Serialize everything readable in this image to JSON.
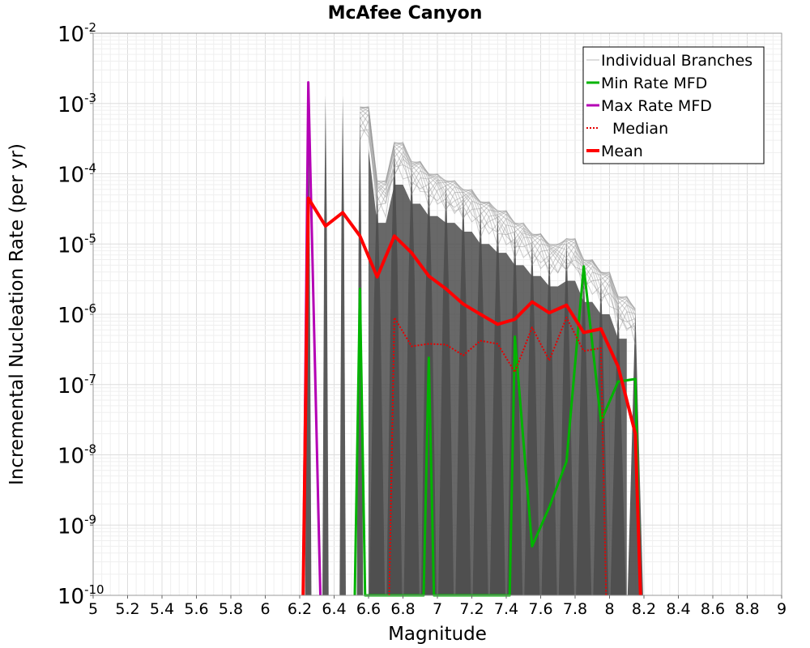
{
  "chart_data": {
    "type": "line",
    "title": "McAfee Canyon",
    "xlabel": "Magnitude",
    "ylabel": "Incremental Nucleation Rate (per yr)",
    "xlim": [
      5,
      9
    ],
    "ylim": [
      1e-10,
      0.01
    ],
    "yscale": "log",
    "grid": true,
    "legend_position": "top-right",
    "x_ticks": [
      "5",
      "5.2",
      "5.4",
      "5.6",
      "5.8",
      "6",
      "6.2",
      "6.4",
      "6.6",
      "6.8",
      "7",
      "7.2",
      "7.4",
      "7.6",
      "7.8",
      "8",
      "8.2",
      "8.4",
      "8.6",
      "8.8",
      "9"
    ],
    "y_ticks": [
      {
        "base": "10",
        "exp": "-10",
        "value": 1e-10
      },
      {
        "base": "10",
        "exp": "-9",
        "value": 1e-09
      },
      {
        "base": "10",
        "exp": "-8",
        "value": 1e-08
      },
      {
        "base": "10",
        "exp": "-7",
        "value": 1e-07
      },
      {
        "base": "10",
        "exp": "-6",
        "value": 1e-06
      },
      {
        "base": "10",
        "exp": "-5",
        "value": 1e-05
      },
      {
        "base": "10",
        "exp": "-4",
        "value": 0.0001
      },
      {
        "base": "10",
        "exp": "-3",
        "value": 0.001
      },
      {
        "base": "10",
        "exp": "-2",
        "value": 0.01
      }
    ],
    "envelope": {
      "name": "Individual Branches",
      "color": "#4d4d4d",
      "note_peaks": [
        {
          "x": 6.25,
          "y": 0.002
        },
        {
          "x": 6.35,
          "y": 0.0013
        },
        {
          "x": 6.45,
          "y": 0.0013
        },
        {
          "x": 6.55,
          "y": 0.0009
        },
        {
          "x": 6.65,
          "y": 8e-05
        },
        {
          "x": 6.75,
          "y": 0.00028
        },
        {
          "x": 6.85,
          "y": 0.00015
        },
        {
          "x": 6.95,
          "y": 0.0001
        },
        {
          "x": 7.05,
          "y": 8e-05
        },
        {
          "x": 7.15,
          "y": 6e-05
        },
        {
          "x": 7.25,
          "y": 4e-05
        },
        {
          "x": 7.35,
          "y": 3e-05
        },
        {
          "x": 7.45,
          "y": 2e-05
        },
        {
          "x": 7.55,
          "y": 1.4e-05
        },
        {
          "x": 7.65,
          "y": 1e-05
        },
        {
          "x": 7.75,
          "y": 1.2e-05
        },
        {
          "x": 7.85,
          "y": 6e-06
        },
        {
          "x": 7.95,
          "y": 4e-06
        },
        {
          "x": 8.05,
          "y": 1.8e-06
        },
        {
          "x": 8.15,
          "y": 1.2e-06
        }
      ]
    },
    "series": [
      {
        "name": "Min Rate MFD",
        "color": "#00b400",
        "style": "solid",
        "points": [
          [
            6.52,
            1e-10
          ],
          [
            6.55,
            2.3e-06
          ],
          [
            6.58,
            1e-10
          ],
          [
            6.92,
            1e-10
          ],
          [
            6.95,
            2.4e-07
          ],
          [
            6.98,
            1e-10
          ],
          [
            7.42,
            1e-10
          ],
          [
            7.45,
            4.8e-07
          ],
          [
            7.55,
            5e-10
          ],
          [
            7.65,
            1.8e-09
          ],
          [
            7.75,
            8e-09
          ],
          [
            7.85,
            4.8e-06
          ],
          [
            7.95,
            3e-08
          ],
          [
            8.05,
            1.1e-07
          ],
          [
            8.15,
            1.2e-07
          ],
          [
            8.18,
            1e-10
          ]
        ]
      },
      {
        "name": "Max Rate MFD",
        "color": "#b400b4",
        "style": "solid",
        "points": [
          [
            6.22,
            1e-10
          ],
          [
            6.25,
            0.002
          ],
          [
            6.32,
            1e-10
          ]
        ]
      },
      {
        "name": "Median",
        "color": "#e60000",
        "style": "dotted",
        "points": [
          [
            6.72,
            1e-10
          ],
          [
            6.75,
            9e-07
          ],
          [
            6.85,
            3.5e-07
          ],
          [
            6.95,
            3.8e-07
          ],
          [
            7.05,
            3.7e-07
          ],
          [
            7.15,
            2.6e-07
          ],
          [
            7.25,
            4.2e-07
          ],
          [
            7.35,
            3.8e-07
          ],
          [
            7.45,
            1.5e-07
          ],
          [
            7.55,
            6.5e-07
          ],
          [
            7.65,
            2.2e-07
          ],
          [
            7.75,
            9e-07
          ],
          [
            7.85,
            3e-07
          ],
          [
            7.95,
            3.3e-07
          ],
          [
            7.98,
            1e-10
          ]
        ]
      },
      {
        "name": "Mean",
        "color": "#ff0000",
        "style": "solid",
        "points": [
          [
            6.22,
            1e-10
          ],
          [
            6.25,
            4.5e-05
          ],
          [
            6.35,
            1.8e-05
          ],
          [
            6.45,
            2.8e-05
          ],
          [
            6.55,
            1.3e-05
          ],
          [
            6.65,
            3.4e-06
          ],
          [
            6.75,
            1.3e-05
          ],
          [
            6.85,
            7.5e-06
          ],
          [
            6.95,
            3.5e-06
          ],
          [
            7.05,
            2.3e-06
          ],
          [
            7.15,
            1.4e-06
          ],
          [
            7.25,
            1e-06
          ],
          [
            7.35,
            7.2e-07
          ],
          [
            7.45,
            8.5e-07
          ],
          [
            7.55,
            1.5e-06
          ],
          [
            7.65,
            1.05e-06
          ],
          [
            7.75,
            1.35e-06
          ],
          [
            7.85,
            5.5e-07
          ],
          [
            7.95,
            6.2e-07
          ],
          [
            8.05,
            1.8e-07
          ],
          [
            8.15,
            2e-08
          ],
          [
            8.18,
            1e-10
          ]
        ]
      }
    ],
    "legend": [
      "Individual Branches",
      "Min Rate MFD",
      "Max Rate MFD",
      "Median",
      "Mean"
    ]
  }
}
